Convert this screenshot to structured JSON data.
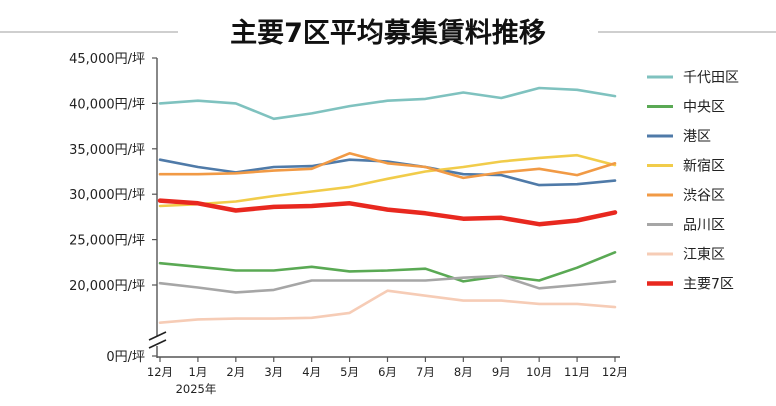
{
  "chart_data": {
    "type": "line",
    "title": "主要7区平均募集賃料推移",
    "xlabel": "",
    "ylabel": "",
    "x": [
      "12月",
      "1月",
      "2月",
      "3月",
      "4月",
      "5月",
      "6月",
      "7月",
      "8月",
      "9月",
      "10月",
      "11月",
      "12月"
    ],
    "x_sublabel": "2025年",
    "ylim": [
      0,
      45000
    ],
    "y_axis_break": [
      0,
      15000
    ],
    "yticks": [
      0,
      20000,
      25000,
      30000,
      35000,
      40000,
      45000
    ],
    "ytick_labels": [
      "0円/坪",
      "20,000円/坪",
      "25,000円/坪",
      "30,000円/坪",
      "35,000円/坪",
      "40,000円/坪",
      "45,000円/坪"
    ],
    "grid": false,
    "legend_position": "right",
    "series": [
      {
        "name": "千代田区",
        "color": "#7fc2bf",
        "values": [
          40000,
          40300,
          40000,
          38300,
          38900,
          39700,
          40300,
          40500,
          41200,
          40600,
          41700,
          41500,
          40800
        ]
      },
      {
        "name": "中央区",
        "color": "#5aa954",
        "values": [
          22400,
          22000,
          21600,
          21600,
          22000,
          21500,
          21600,
          21800,
          20400,
          21000,
          20500,
          21900,
          23600
        ]
      },
      {
        "name": "港区",
        "color": "#4f7aa8",
        "values": [
          33800,
          33000,
          32400,
          33000,
          33100,
          33800,
          33600,
          33000,
          32200,
          32100,
          31000,
          31100,
          31500
        ]
      },
      {
        "name": "新宿区",
        "color": "#f1cc4a",
        "values": [
          28700,
          28900,
          29200,
          29800,
          30300,
          30800,
          31700,
          32500,
          33000,
          33600,
          34000,
          34300,
          33200
        ]
      },
      {
        "name": "渋谷区",
        "color": "#f19a45",
        "values": [
          32200,
          32200,
          32300,
          32600,
          32800,
          34500,
          33400,
          33000,
          31800,
          32400,
          32800,
          32100,
          33400
        ]
      },
      {
        "name": "品川区",
        "color": "#a6a6a6",
        "values": [
          20200,
          19700,
          19100,
          19400,
          20500,
          20500,
          20500,
          20500,
          20800,
          21000,
          19600,
          20000,
          20400
        ]
      },
      {
        "name": "江東区",
        "color": "#f6ccb6",
        "values": [
          15400,
          15800,
          15900,
          15900,
          16000,
          16600,
          19300,
          18700,
          18100,
          18100,
          17700,
          17700,
          17300
        ]
      },
      {
        "name": "主要7区",
        "color": "#e8281f",
        "values": [
          29300,
          29000,
          28200,
          28600,
          28700,
          29000,
          28300,
          27900,
          27300,
          27400,
          26700,
          27100,
          28000
        ]
      }
    ]
  }
}
